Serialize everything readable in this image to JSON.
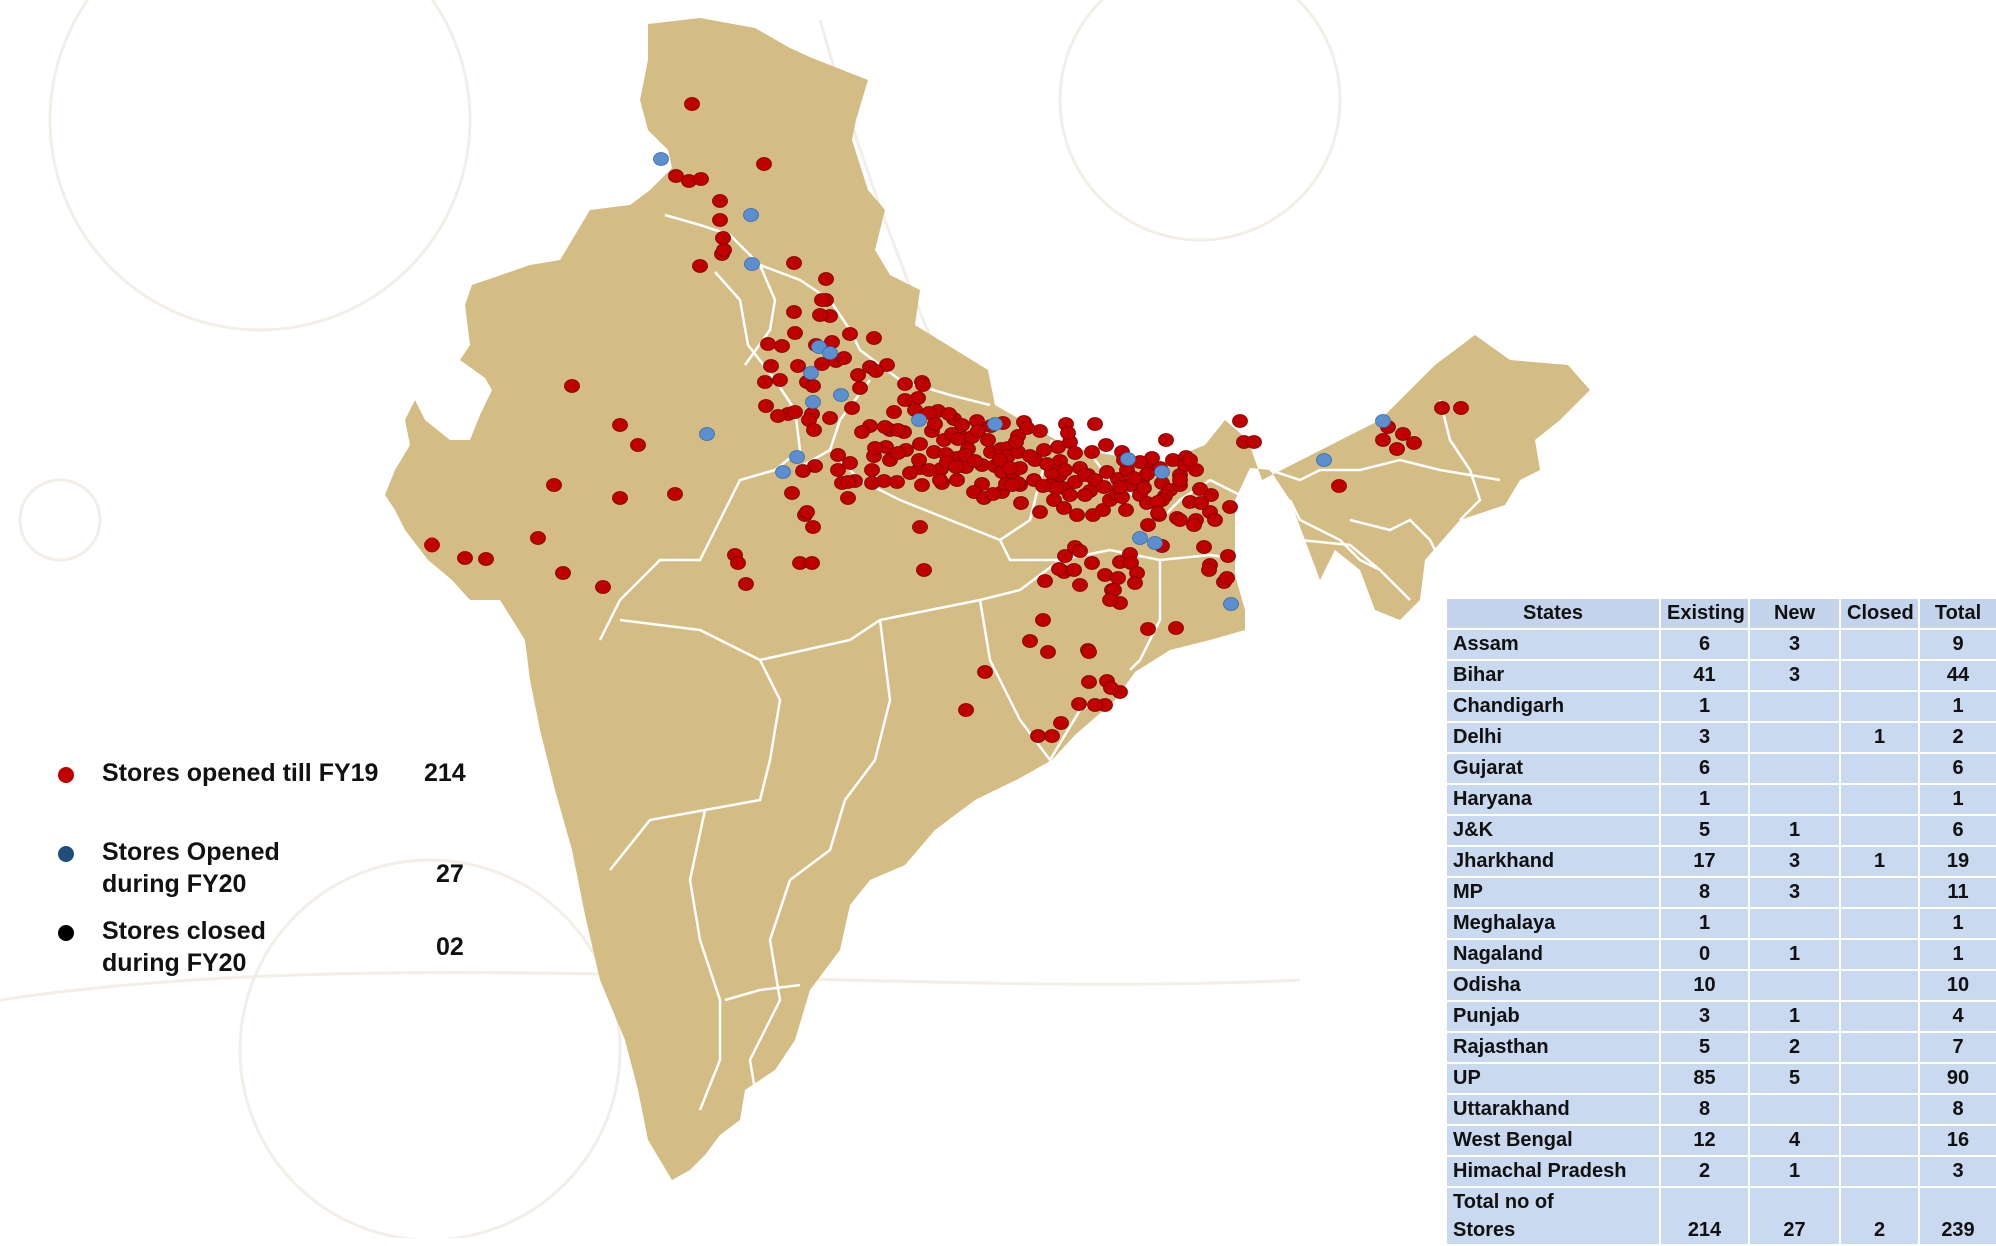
{
  "legend": [
    {
      "label": "Stores opened till FY19",
      "count": "214",
      "color": "#c00000"
    },
    {
      "label": "Stores Opened\nduring FY20",
      "count": "27",
      "color": "#1f4e79"
    },
    {
      "label": "Stores closed\nduring FY20",
      "count": "02",
      "color": "#000000"
    }
  ],
  "table": {
    "headers": [
      "States",
      "Existing",
      "New",
      "Closed",
      "Total"
    ],
    "rows": [
      [
        "Assam",
        "6",
        "3",
        "",
        "9"
      ],
      [
        "Bihar",
        "41",
        "3",
        "",
        "44"
      ],
      [
        "Chandigarh",
        "1",
        "",
        "",
        "1"
      ],
      [
        "Delhi",
        "3",
        "",
        "1",
        "2"
      ],
      [
        "Gujarat",
        "6",
        "",
        "",
        "6"
      ],
      [
        "Haryana",
        "1",
        "",
        "",
        "1"
      ],
      [
        "J&K",
        "5",
        "1",
        "",
        "6"
      ],
      [
        "Jharkhand",
        "17",
        "3",
        "1",
        "19"
      ],
      [
        "MP",
        "8",
        "3",
        "",
        "11"
      ],
      [
        "Meghalaya",
        "1",
        "",
        "",
        "1"
      ],
      [
        "Nagaland",
        "0",
        "1",
        "",
        "1"
      ],
      [
        "Odisha",
        "10",
        "",
        "",
        "10"
      ],
      [
        "Punjab",
        "3",
        "1",
        "",
        "4"
      ],
      [
        "Rajasthan",
        "5",
        "2",
        "",
        "7"
      ],
      [
        "UP",
        "85",
        "5",
        "",
        "90"
      ],
      [
        "Uttarakhand",
        "8",
        "",
        "",
        "8"
      ],
      [
        "West Bengal",
        "12",
        "4",
        "",
        "16"
      ],
      [
        "Himachal Pradesh",
        "2",
        "1",
        "",
        "3"
      ]
    ],
    "total": [
      "Total no of\nStores",
      "214",
      "27",
      "2",
      "239"
    ]
  },
  "map": {
    "land_color": "#d4bd84",
    "border_color": "#ffffff",
    "existing_marker_color": "#c00000",
    "new_marker_color": "#5b8fd0"
  }
}
